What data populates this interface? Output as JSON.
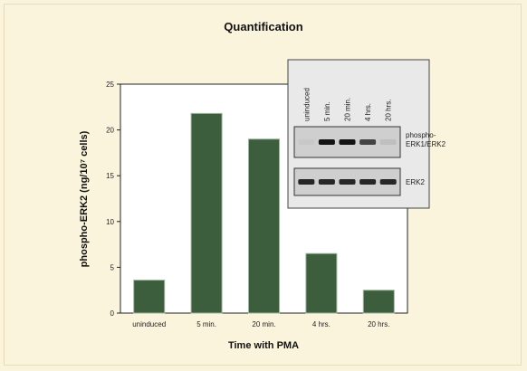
{
  "chart_data": {
    "type": "bar",
    "title": "Quantification",
    "xlabel": "Time with PMA",
    "ylabel": "phospho-ERK2 (ng/10⁷ cells)",
    "categories": [
      "uninduced",
      "5 min.",
      "20 min.",
      "4 hrs.",
      "20 hrs."
    ],
    "values": [
      3.6,
      21.8,
      19.0,
      6.5,
      2.5
    ],
    "ylim": [
      0,
      25
    ],
    "yticks": [
      "0",
      "5",
      "10",
      "15",
      "20",
      "25"
    ],
    "grid": false,
    "bar_color": "#3d5e3d",
    "inset": {
      "lane_labels": [
        "uninduced",
        "5 min.",
        "20 min.",
        "4 hrs.",
        "20 hrs."
      ],
      "blots": [
        {
          "label": "phospho-ERK1/ERK2",
          "intensities": [
            0.0,
            0.95,
            0.95,
            0.7,
            0.05
          ]
        },
        {
          "label": "ERK2",
          "intensities": [
            0.85,
            0.85,
            0.85,
            0.85,
            0.85
          ]
        }
      ]
    }
  }
}
